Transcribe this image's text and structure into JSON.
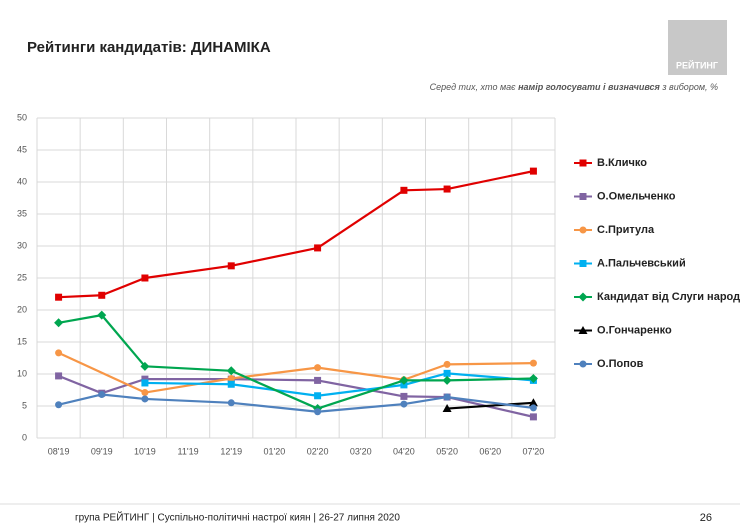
{
  "header": {
    "title": "Рейтинги кандидатів: ДИНАМІКА",
    "logo": "РЕЙТИНГ",
    "subtitle": [
      "Серед тих, хто має ",
      "намір голосувати і визначився",
      " з вибором, %"
    ]
  },
  "chart_data": {
    "type": "line",
    "categories": [
      "08'19",
      "09'19",
      "10'19",
      "11'19",
      "12'19",
      "01'20",
      "02'20",
      "03'20",
      "04'20",
      "05'20",
      "06'20",
      "07'20"
    ],
    "ylim": [
      0,
      50
    ],
    "yticks": [
      0,
      5,
      10,
      15,
      20,
      25,
      30,
      35,
      40,
      45,
      50
    ],
    "grid": true,
    "series": [
      {
        "name": "В.Кличко",
        "color": "#e00000",
        "marker": "square",
        "values": [
          22.0,
          22.3,
          25.0,
          null,
          26.9,
          null,
          29.7,
          null,
          38.7,
          38.9,
          null,
          41.7
        ]
      },
      {
        "name": "О.Омельченко",
        "color": "#8064a2",
        "marker": "square",
        "values": [
          9.7,
          7.0,
          9.2,
          null,
          9.2,
          null,
          9.0,
          null,
          6.5,
          6.4,
          null,
          3.3
        ]
      },
      {
        "name": "С.Притула",
        "color": "#f79646",
        "marker": "circle",
        "values": [
          13.3,
          null,
          7.1,
          null,
          9.3,
          null,
          11.0,
          null,
          9.1,
          11.5,
          null,
          11.7
        ]
      },
      {
        "name": "А.Пальчевський",
        "color": "#00b0f0",
        "marker": "square",
        "values": [
          null,
          null,
          8.6,
          null,
          8.4,
          null,
          6.6,
          null,
          8.3,
          10.1,
          null,
          9.0
        ]
      },
      {
        "name": "Кандидат від Слуги народу",
        "color": "#00a650",
        "marker": "diamond",
        "values": [
          18.0,
          19.2,
          11.2,
          null,
          10.5,
          null,
          4.6,
          null,
          9.0,
          9.0,
          null,
          9.3
        ]
      },
      {
        "name": "О.Гончаренко",
        "color": "#000000",
        "marker": "triangle",
        "values": [
          null,
          null,
          null,
          null,
          null,
          null,
          null,
          null,
          null,
          4.6,
          null,
          5.5
        ]
      },
      {
        "name": "О.Попов",
        "color": "#4f81bd",
        "marker": "circle",
        "values": [
          5.2,
          6.8,
          6.1,
          null,
          5.5,
          null,
          4.1,
          null,
          5.3,
          6.4,
          null,
          4.7
        ]
      }
    ]
  },
  "footer": {
    "text": "група РЕЙТИНГ  | Суспільно-політичні настрої киян | 26-27 липня 2020",
    "page": "26"
  }
}
